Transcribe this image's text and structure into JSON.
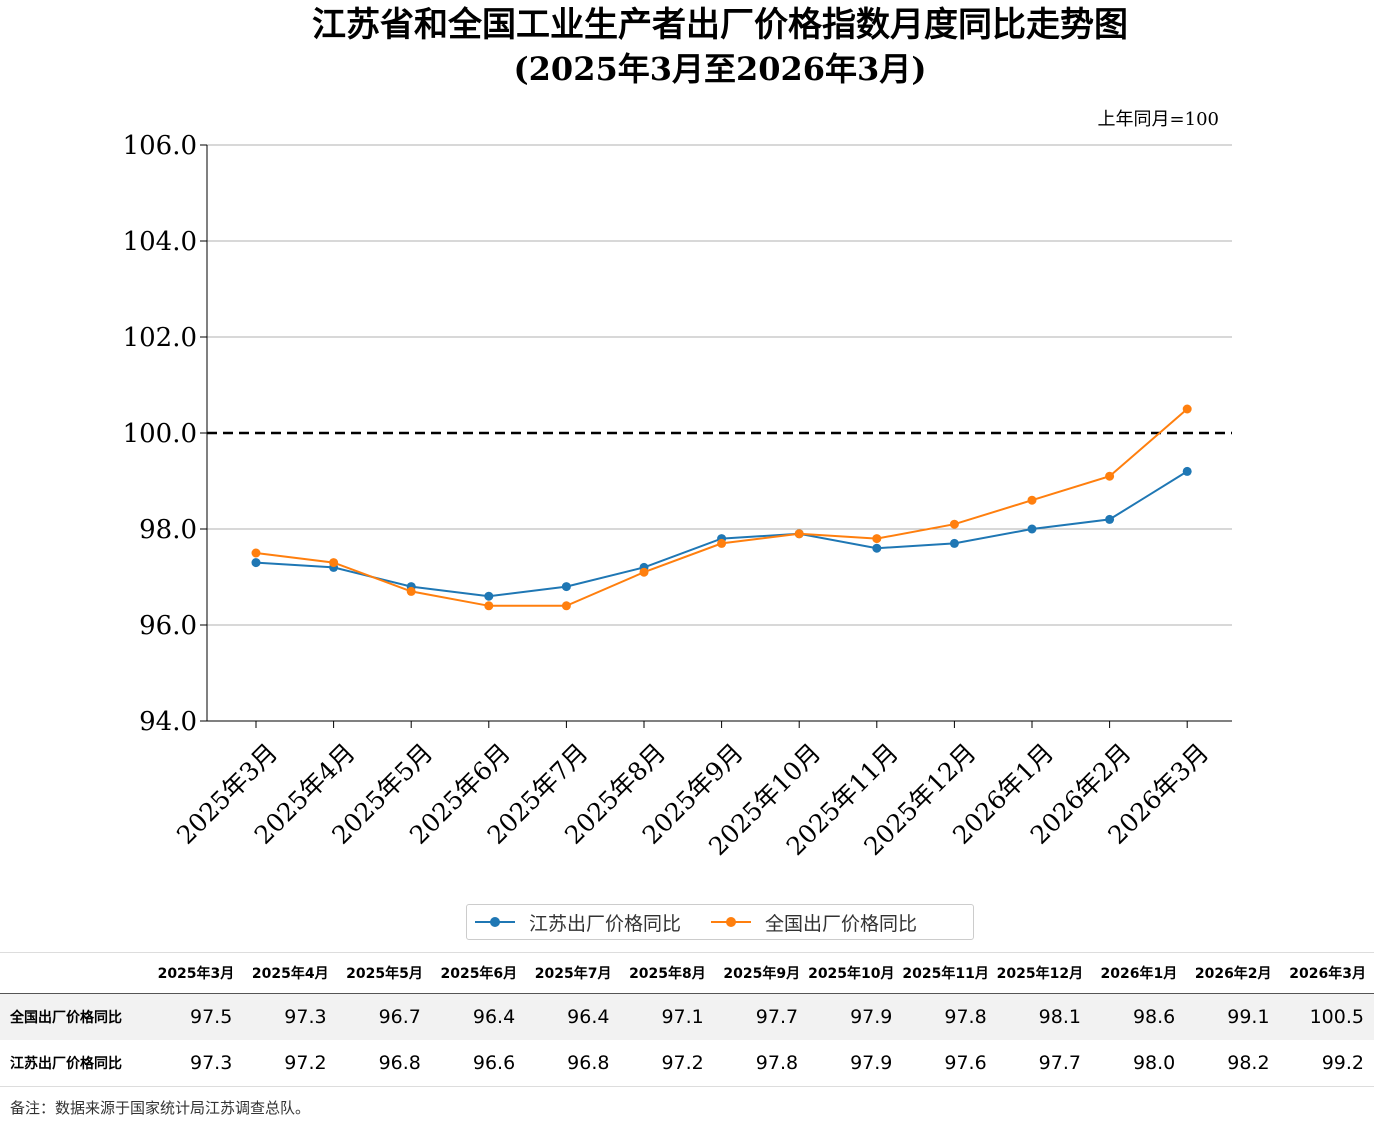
{
  "title": "江苏省和全国工业生产者出厂价格指数月度同比走势图",
  "subtitle": "(2025年3月至2026年3月)",
  "unit_note": "上年同月=100",
  "colors": {
    "jiangsu": "#1f77b4",
    "national": "#ff7f0e",
    "reference_line": "#000000",
    "grid": "#b0b0b0"
  },
  "chart_data": {
    "type": "line",
    "categories": [
      "2025年3月",
      "2025年4月",
      "2025年5月",
      "2025年6月",
      "2025年7月",
      "2025年8月",
      "2025年9月",
      "2025年10月",
      "2025年11月",
      "2025年12月",
      "2026年1月",
      "2026年2月",
      "2026年3月"
    ],
    "series": [
      {
        "name": "江苏出厂价格同比",
        "color": "#1f77b4",
        "values": [
          97.3,
          97.2,
          96.8,
          96.6,
          96.8,
          97.2,
          97.8,
          97.9,
          97.6,
          97.7,
          98.0,
          98.2,
          99.2
        ]
      },
      {
        "name": "全国出厂价格同比",
        "color": "#ff7f0e",
        "values": [
          97.5,
          97.3,
          96.7,
          96.4,
          96.4,
          97.1,
          97.7,
          97.9,
          97.8,
          98.1,
          98.6,
          99.1,
          100.5
        ]
      }
    ],
    "yticks": [
      "94.0",
      "96.0",
      "98.0",
      "100.0",
      "102.0",
      "104.0",
      "106.0"
    ],
    "ylim": [
      94,
      106
    ],
    "reference_line": 100,
    "grid": "horizontal",
    "legend": "bottom-center"
  },
  "legend": [
    {
      "label": "江苏出厂价格同比",
      "color": "#1f77b4"
    },
    {
      "label": "全国出厂价格同比",
      "color": "#ff7f0e"
    }
  ],
  "table": {
    "headers": [
      "2025年3月",
      "2025年4月",
      "2025年5月",
      "2025年6月",
      "2025年7月",
      "2025年8月",
      "2025年9月",
      "2025年10月",
      "2025年11月",
      "2025年12月",
      "2026年1月",
      "2026年2月",
      "2026年3月"
    ],
    "rows": [
      {
        "label": "全国出厂价格同比",
        "values": [
          "97.5",
          "97.3",
          "96.7",
          "96.4",
          "96.4",
          "97.1",
          "97.7",
          "97.9",
          "97.8",
          "98.1",
          "98.6",
          "99.1",
          "100.5"
        ]
      },
      {
        "label": "江苏出厂价格同比",
        "values": [
          "97.3",
          "97.2",
          "96.8",
          "96.6",
          "96.8",
          "97.2",
          "97.8",
          "97.9",
          "97.6",
          "97.7",
          "98.0",
          "98.2",
          "99.2"
        ]
      }
    ]
  },
  "footnote": "备注：数据来源于国家统计局江苏调查总队。"
}
